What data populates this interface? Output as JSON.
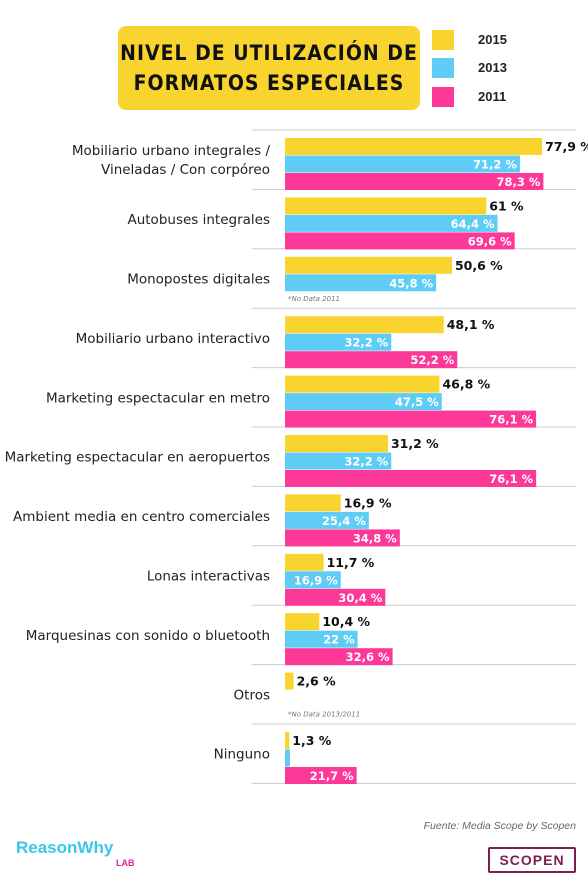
{
  "title": {
    "line1": "NIVEL DE UTILIZACIÓN DE",
    "line2": "FORMATOS ESPECIALES"
  },
  "colors": {
    "y2015": "#f9d42f",
    "y2013": "#5fccf5",
    "y2011": "#fc3898",
    "divider": "#cccccc"
  },
  "legend": [
    {
      "label": "2015",
      "color": "#f9d42f"
    },
    {
      "label": "2013",
      "color": "#5fccf5"
    },
    {
      "label": "2011",
      "color": "#fc3898"
    }
  ],
  "source": "Fuente: Media Scope by Scopen",
  "logos": {
    "reasonwhy": "ReasonWhy",
    "lab": "LAB",
    "scopen": "SCOPEN"
  },
  "chart_data": {
    "type": "bar",
    "orientation": "horizontal",
    "title": "NIVEL DE UTILIZACIÓN DE FORMATOS ESPECIALES",
    "categories": [
      [
        "Mobiliario urbano integrales /",
        "Vineladas / Con corpóreo"
      ],
      [
        "Autobuses integrales"
      ],
      [
        "Monopostes digitales"
      ],
      [
        "Mobiliario urbano interactivo"
      ],
      [
        "Marketing espectacular en metro"
      ],
      [
        "Marketing espectacular en aeropuertos"
      ],
      [
        "Ambient media en centro comerciales"
      ],
      [
        "Lonas interactivas"
      ],
      [
        "Marquesinas con sonido o bluetooth"
      ],
      [
        "Otros"
      ],
      [
        "Ninguno"
      ]
    ],
    "series": [
      {
        "name": "2015",
        "values": [
          77.9,
          61,
          50.6,
          48.1,
          46.8,
          31.2,
          16.9,
          11.7,
          10.4,
          2.6,
          1.3
        ],
        "labels": [
          "77,9 %",
          "61 %",
          "50,6 %",
          "48,1 %",
          "46,8 %",
          "31,2 %",
          "16,9 %",
          "11,7 %",
          "10,4 %",
          "2,6 %",
          "1,3 %"
        ]
      },
      {
        "name": "2013",
        "values": [
          71.2,
          64.4,
          45.8,
          32.2,
          47.5,
          32.2,
          25.4,
          16.9,
          22,
          null,
          1.5
        ],
        "labels": [
          "71,2 %",
          "64,4 %",
          "45,8 %",
          "32,2 %",
          "47,5 %",
          "32,2 %",
          "25,4 %",
          "16,9 %",
          "22 %",
          "",
          ""
        ]
      },
      {
        "name": "2011",
        "values": [
          78.3,
          69.6,
          null,
          52.2,
          76.1,
          76.1,
          34.8,
          30.4,
          32.6,
          null,
          21.7
        ],
        "labels": [
          "78,3 %",
          "69,6 %",
          "",
          "52,2 %",
          "76,1 %",
          "76,1 %",
          "34,8 %",
          "30,4 %",
          "32,6 %",
          "",
          "21,7 %"
        ]
      }
    ],
    "notes": {
      "2": "*No Data 2011",
      "9": "*No Data 2013/2011"
    },
    "value_format": "percent"
  }
}
